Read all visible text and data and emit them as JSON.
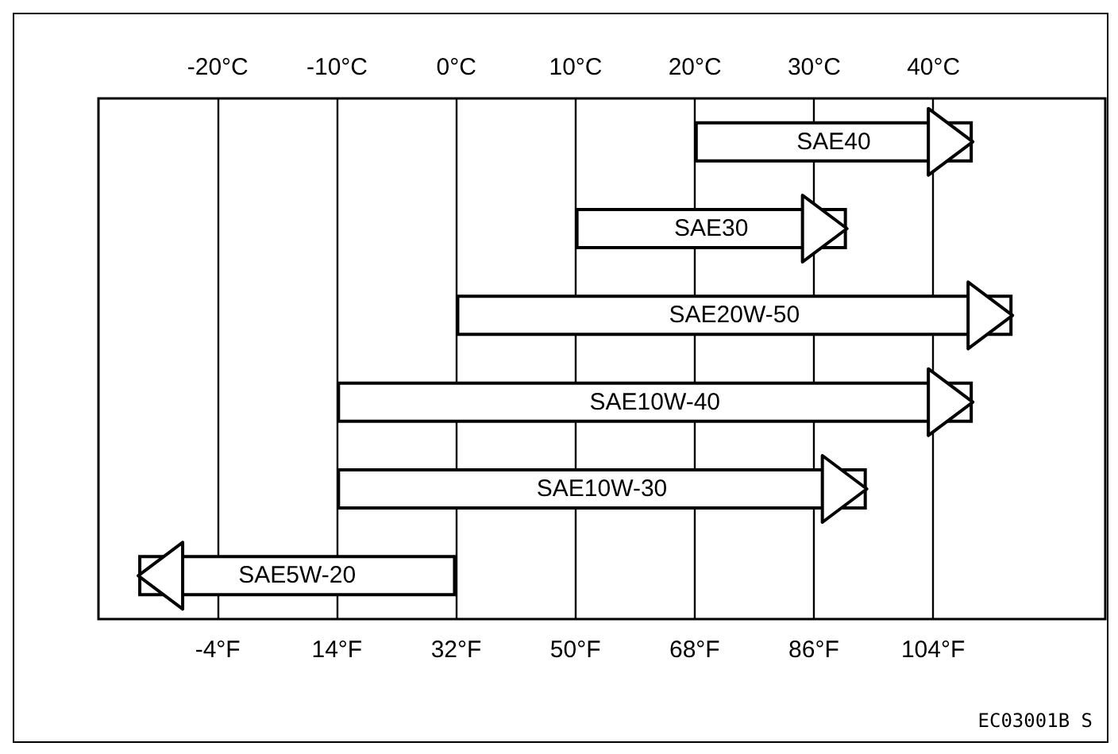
{
  "chart_data": {
    "type": "bar",
    "orientation": "horizontal",
    "categories": [
      "SAE40",
      "SAE30",
      "SAE20W-50",
      "SAE10W-40",
      "SAE10W-30",
      "SAE5W-20"
    ],
    "base": [
      68,
      50,
      32,
      14,
      14,
      32
    ],
    "values": [
      42,
      41,
      84,
      96,
      80,
      -48
    ],
    "color": "#ffffff",
    "xlim": [
      -22,
      130
    ],
    "xticks": [
      {
        "value": -4,
        "label": "-4°F"
      },
      {
        "value": 14,
        "label": "14°F"
      },
      {
        "value": 32,
        "label": "32°F"
      },
      {
        "value": 50,
        "label": "50°F"
      },
      {
        "value": 68,
        "label": "68°F"
      },
      {
        "value": 86,
        "label": "86°F"
      },
      {
        "value": 104,
        "label": "104°F"
      }
    ],
    "x2lim": [
      -30,
      54.4
    ],
    "x2ticks": [
      {
        "value": -20,
        "label": "-20°C"
      },
      {
        "value": -10,
        "label": "-10°C"
      },
      {
        "value": 0,
        "label": "0°C"
      },
      {
        "value": 10,
        "label": "10°C"
      },
      {
        "value": 20,
        "label": "20°C"
      },
      {
        "value": 30,
        "label": "30°C"
      },
      {
        "value": 40,
        "label": "40°C"
      }
    ],
    "grid": "x",
    "annotations": [
      "EC03001B  S"
    ]
  }
}
